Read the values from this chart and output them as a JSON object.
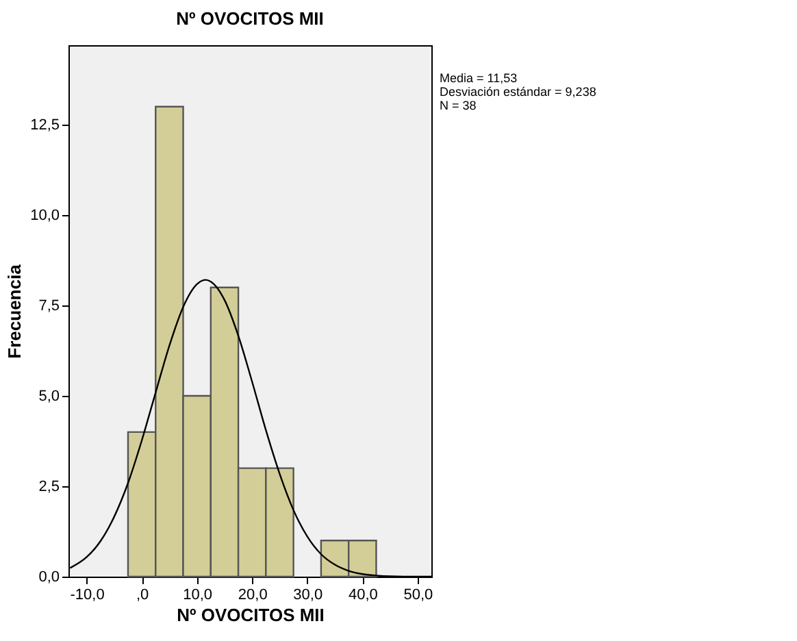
{
  "chart_data": {
    "type": "histogram",
    "title": "Nº OVOCITOS MII",
    "xlabel": "Nº OVOCITOS MII",
    "ylabel": "Frecuencia",
    "bins": [
      -2.5,
      2.5,
      7.5,
      12.5,
      17.5,
      22.5,
      27.5,
      32.5,
      37.5,
      42.5
    ],
    "values": [
      4,
      13,
      5,
      8,
      3,
      3,
      0,
      1,
      1
    ],
    "color": "#d3ce97",
    "series": [
      {
        "type": "line",
        "color": "#000000",
        "x": [
          -13,
          -10,
          -7.5,
          -5,
          -2.5,
          0,
          2.5,
          5,
          7.5,
          10,
          11.53,
          12.5,
          15,
          17.5,
          20,
          22.5,
          25,
          27.5,
          30,
          32.5,
          35,
          37.5,
          40,
          42.5,
          45,
          50,
          52.5
        ],
        "values": [
          0.24,
          0.54,
          0.98,
          1.66,
          2.59,
          3.77,
          5.09,
          6.39,
          7.46,
          8.09,
          8.21,
          8.16,
          7.65,
          6.66,
          5.39,
          4.05,
          2.84,
          1.84,
          1.11,
          0.62,
          0.33,
          0.16,
          0.07,
          0.03,
          0.01,
          0.0,
          0.0
        ]
      }
    ],
    "xlim": [
      -13.3,
      52.5
    ],
    "xticks": [
      {
        "value": -10,
        "label": "-10,0"
      },
      {
        "value": 0,
        "label": ",0"
      },
      {
        "value": 10,
        "label": "10,0"
      },
      {
        "value": 20,
        "label": "20,0"
      },
      {
        "value": 30,
        "label": "30,0"
      },
      {
        "value": 40,
        "label": "40,0"
      },
      {
        "value": 50,
        "label": "50,0"
      }
    ],
    "ylim": [
      0,
      14.7
    ],
    "yticks": [
      {
        "value": 0,
        "label": "0,0"
      },
      {
        "value": 2.5,
        "label": "2,5"
      },
      {
        "value": 5,
        "label": "5,0"
      },
      {
        "value": 7.5,
        "label": "7,5"
      },
      {
        "value": 10,
        "label": "10,0"
      },
      {
        "value": 12.5,
        "label": "12,5"
      }
    ],
    "grid": false,
    "annotations": [
      "Media = 11,53",
      "Desviación estándar = 9,238",
      "N = 38"
    ]
  }
}
